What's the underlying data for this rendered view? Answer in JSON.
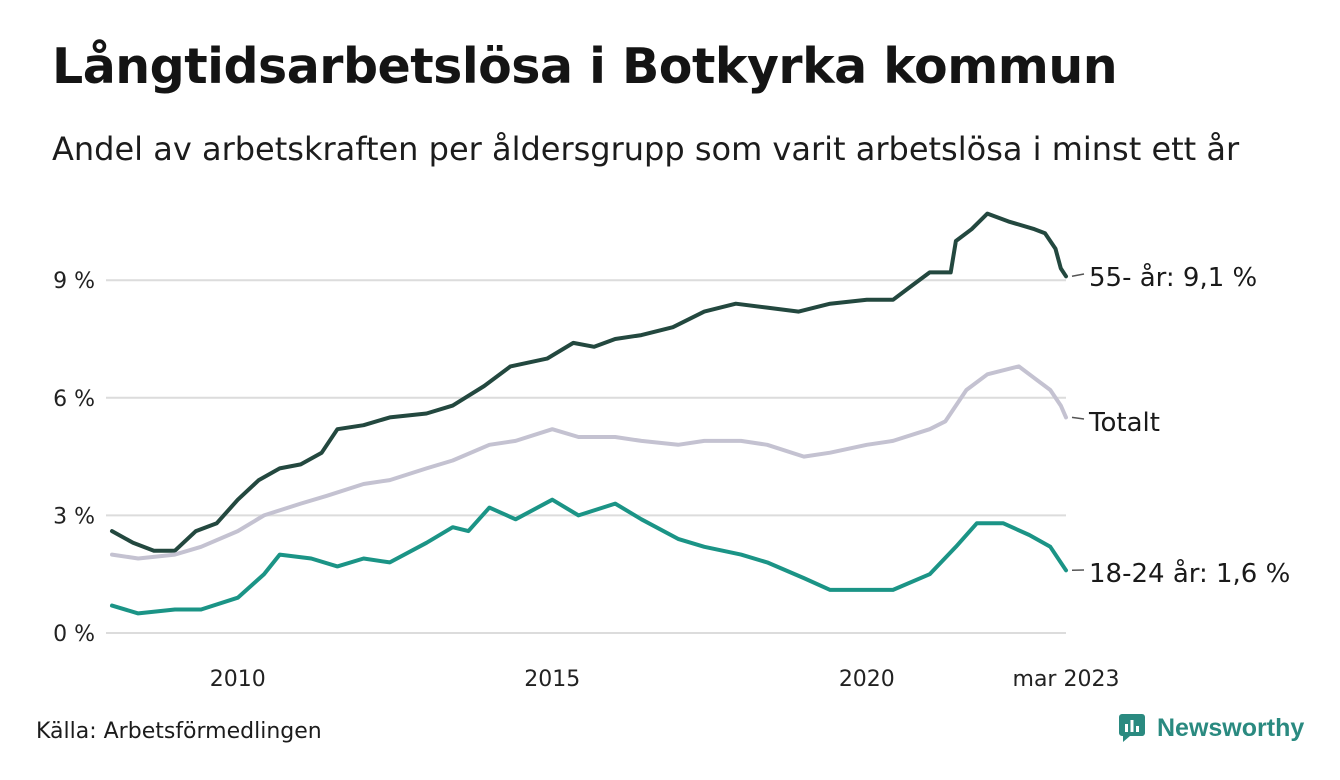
{
  "header": {
    "title": "Långtidsarbetslösa i Botkyrka kommun",
    "subtitle": "Andel av arbetskraften per åldersgrupp som varit arbetslösa i minst ett år"
  },
  "footer": {
    "source": "Källa: Arbetsförmedlingen",
    "brand": "Newsworthy"
  },
  "colors": {
    "age_55": "#23483f",
    "total": "#c4c2d1",
    "age_18_24": "#1b9486",
    "grid": "#dcdcdc",
    "brand": "#2a8a80"
  },
  "chart_data": {
    "type": "line",
    "title": "Långtidsarbetslösa i Botkyrka kommun",
    "subtitle": "Andel av arbetskraften per åldersgrupp som varit arbetslösa i minst ett år",
    "x_range": [
      "2008-01",
      "2023-03"
    ],
    "ylim": [
      0,
      11
    ],
    "y_ticks": [
      0,
      3,
      6,
      9
    ],
    "y_tick_labels": [
      "0 %",
      "3 %",
      "6 %",
      "9 %"
    ],
    "x_ticks": [
      {
        "date": "2010-01",
        "label": "2010"
      },
      {
        "date": "2015-01",
        "label": "2015"
      },
      {
        "date": "2020-01",
        "label": "2020"
      },
      {
        "date": "2023-03",
        "label": "mar 2023"
      }
    ],
    "grid": true,
    "series": [
      {
        "key": "age_55",
        "label": "55- år: 9,1 %",
        "points": [
          [
            "2008-01",
            2.6
          ],
          [
            "2008-05",
            2.3
          ],
          [
            "2008-09",
            2.1
          ],
          [
            "2009-01",
            2.1
          ],
          [
            "2009-05",
            2.6
          ],
          [
            "2009-09",
            2.8
          ],
          [
            "2010-01",
            3.4
          ],
          [
            "2010-05",
            3.9
          ],
          [
            "2010-09",
            4.2
          ],
          [
            "2011-01",
            4.3
          ],
          [
            "2011-05",
            4.6
          ],
          [
            "2011-08",
            5.2
          ],
          [
            "2012-01",
            5.3
          ],
          [
            "2012-06",
            5.5
          ],
          [
            "2013-01",
            5.6
          ],
          [
            "2013-06",
            5.8
          ],
          [
            "2013-12",
            6.3
          ],
          [
            "2014-05",
            6.8
          ],
          [
            "2014-12",
            7.0
          ],
          [
            "2015-05",
            7.4
          ],
          [
            "2015-09",
            7.3
          ],
          [
            "2016-01",
            7.5
          ],
          [
            "2016-06",
            7.6
          ],
          [
            "2016-12",
            7.8
          ],
          [
            "2017-06",
            8.2
          ],
          [
            "2017-12",
            8.4
          ],
          [
            "2018-06",
            8.3
          ],
          [
            "2018-12",
            8.2
          ],
          [
            "2019-06",
            8.4
          ],
          [
            "2020-01",
            8.5
          ],
          [
            "2020-06",
            8.5
          ],
          [
            "2020-09",
            8.8
          ],
          [
            "2021-01",
            9.2
          ],
          [
            "2021-05",
            9.2
          ],
          [
            "2021-06",
            10.0
          ],
          [
            "2021-09",
            10.3
          ],
          [
            "2021-12",
            10.7
          ],
          [
            "2022-04",
            10.5
          ],
          [
            "2022-09",
            10.3
          ],
          [
            "2022-11",
            10.2
          ],
          [
            "2023-01",
            9.8
          ],
          [
            "2023-02",
            9.3
          ],
          [
            "2023-03",
            9.1
          ]
        ]
      },
      {
        "key": "total",
        "label": "Totalt",
        "points": [
          [
            "2008-01",
            2.0
          ],
          [
            "2008-06",
            1.9
          ],
          [
            "2009-01",
            2.0
          ],
          [
            "2009-06",
            2.2
          ],
          [
            "2010-01",
            2.6
          ],
          [
            "2010-06",
            3.0
          ],
          [
            "2011-01",
            3.3
          ],
          [
            "2011-06",
            3.5
          ],
          [
            "2012-01",
            3.8
          ],
          [
            "2012-06",
            3.9
          ],
          [
            "2013-01",
            4.2
          ],
          [
            "2013-06",
            4.4
          ],
          [
            "2014-01",
            4.8
          ],
          [
            "2014-06",
            4.9
          ],
          [
            "2015-01",
            5.2
          ],
          [
            "2015-06",
            5.0
          ],
          [
            "2016-01",
            5.0
          ],
          [
            "2016-06",
            4.9
          ],
          [
            "2017-01",
            4.8
          ],
          [
            "2017-06",
            4.9
          ],
          [
            "2018-01",
            4.9
          ],
          [
            "2018-06",
            4.8
          ],
          [
            "2019-01",
            4.5
          ],
          [
            "2019-06",
            4.6
          ],
          [
            "2020-01",
            4.8
          ],
          [
            "2020-06",
            4.9
          ],
          [
            "2021-01",
            5.2
          ],
          [
            "2021-04",
            5.4
          ],
          [
            "2021-08",
            6.2
          ],
          [
            "2021-12",
            6.6
          ],
          [
            "2022-06",
            6.8
          ],
          [
            "2022-09",
            6.5
          ],
          [
            "2022-12",
            6.2
          ],
          [
            "2023-02",
            5.8
          ],
          [
            "2023-03",
            5.5
          ]
        ]
      },
      {
        "key": "age_18_24",
        "label": "18-24 år: 1,6 %",
        "points": [
          [
            "2008-01",
            0.7
          ],
          [
            "2008-06",
            0.5
          ],
          [
            "2009-01",
            0.6
          ],
          [
            "2009-06",
            0.6
          ],
          [
            "2010-01",
            0.9
          ],
          [
            "2010-06",
            1.5
          ],
          [
            "2010-09",
            2.0
          ],
          [
            "2011-03",
            1.9
          ],
          [
            "2011-08",
            1.7
          ],
          [
            "2012-01",
            1.9
          ],
          [
            "2012-06",
            1.8
          ],
          [
            "2013-01",
            2.3
          ],
          [
            "2013-06",
            2.7
          ],
          [
            "2013-09",
            2.6
          ],
          [
            "2014-01",
            3.2
          ],
          [
            "2014-06",
            2.9
          ],
          [
            "2015-01",
            3.4
          ],
          [
            "2015-06",
            3.0
          ],
          [
            "2016-01",
            3.3
          ],
          [
            "2016-06",
            2.9
          ],
          [
            "2017-01",
            2.4
          ],
          [
            "2017-06",
            2.2
          ],
          [
            "2018-01",
            2.0
          ],
          [
            "2018-06",
            1.8
          ],
          [
            "2019-01",
            1.4
          ],
          [
            "2019-06",
            1.1
          ],
          [
            "2020-01",
            1.1
          ],
          [
            "2020-06",
            1.1
          ],
          [
            "2021-01",
            1.5
          ],
          [
            "2021-06",
            2.2
          ],
          [
            "2021-10",
            2.8
          ],
          [
            "2022-03",
            2.8
          ],
          [
            "2022-08",
            2.5
          ],
          [
            "2022-12",
            2.2
          ],
          [
            "2023-03",
            1.6
          ]
        ]
      }
    ]
  }
}
